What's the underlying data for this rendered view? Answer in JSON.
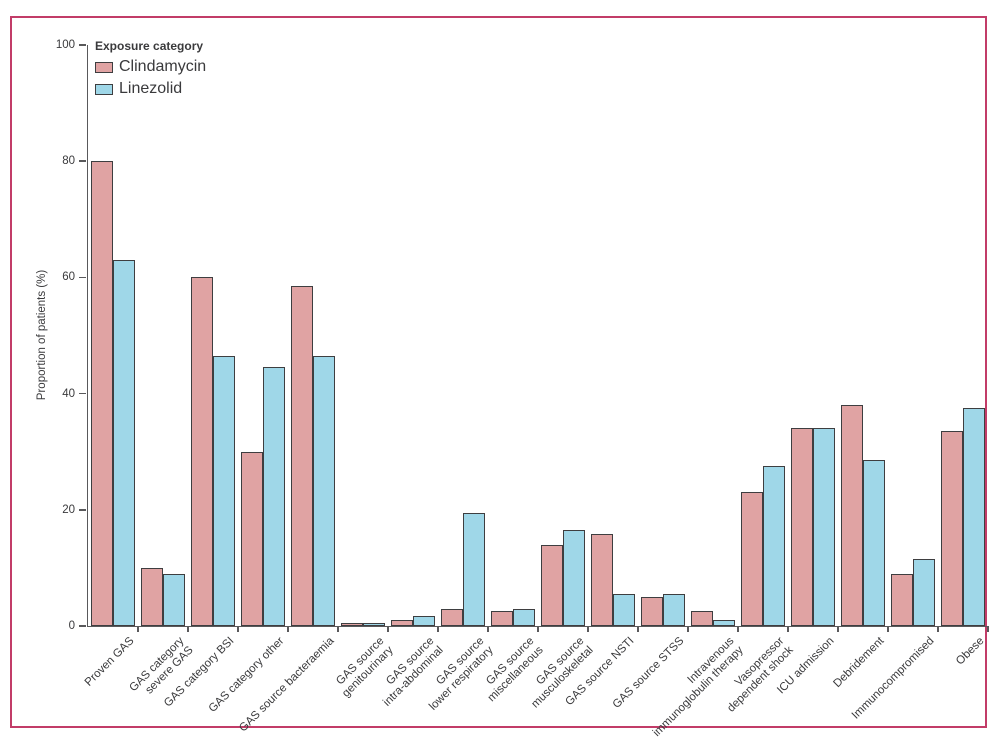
{
  "figure": {
    "frame_color": "#c23c68",
    "background_color": "#ffffff",
    "axis_color": "#59595b",
    "bar_border_color": "#3e3e40",
    "text_color": "#3a3a3c"
  },
  "legend": {
    "title": "Exposure category",
    "items": [
      {
        "label": "Clindamycin",
        "color": "#e0a3a3"
      },
      {
        "label": "Linezolid",
        "color": "#9fd7e8"
      }
    ]
  },
  "chart_data": {
    "type": "bar",
    "title": "",
    "xlabel": "",
    "ylabel": "Proportion of patients (%)",
    "ylim": [
      0,
      100
    ],
    "yticks": [
      0,
      20,
      40,
      60,
      80,
      100
    ],
    "grid": false,
    "legend_position": "top-left-inside",
    "categories": [
      "Proven GAS",
      "GAS category\nsevere GAS",
      "GAS category BSI",
      "GAS category other",
      "GAS source bacteraemia",
      "GAS source\ngenitourinary",
      "GAS source\nintra-abdominal",
      "GAS source\nlower respiratory",
      "GAS source\nmiscellaneous",
      "GAS source\nmusculoskeletal",
      "GAS source NSTI",
      "GAS source STSS",
      "Intravenous\nimmunoglobulin therapy",
      "Vasopressor\ndependent shock",
      "ICU admission",
      "Debridement",
      "Immunocompromised",
      "Obese"
    ],
    "series": [
      {
        "name": "Clindamycin",
        "color": "#e0a3a3",
        "values": [
          80,
          10,
          60,
          30,
          58.5,
          0.5,
          1,
          3,
          2.5,
          14,
          15.8,
          5,
          2.5,
          23,
          34,
          38,
          9,
          33.5
        ]
      },
      {
        "name": "Linezolid",
        "color": "#9fd7e8",
        "values": [
          63,
          9,
          46.5,
          44.5,
          46.5,
          0.5,
          1.8,
          19.5,
          3,
          16.5,
          5.5,
          5.5,
          1,
          27.5,
          34,
          28.5,
          11.5,
          37.5
        ]
      }
    ]
  }
}
